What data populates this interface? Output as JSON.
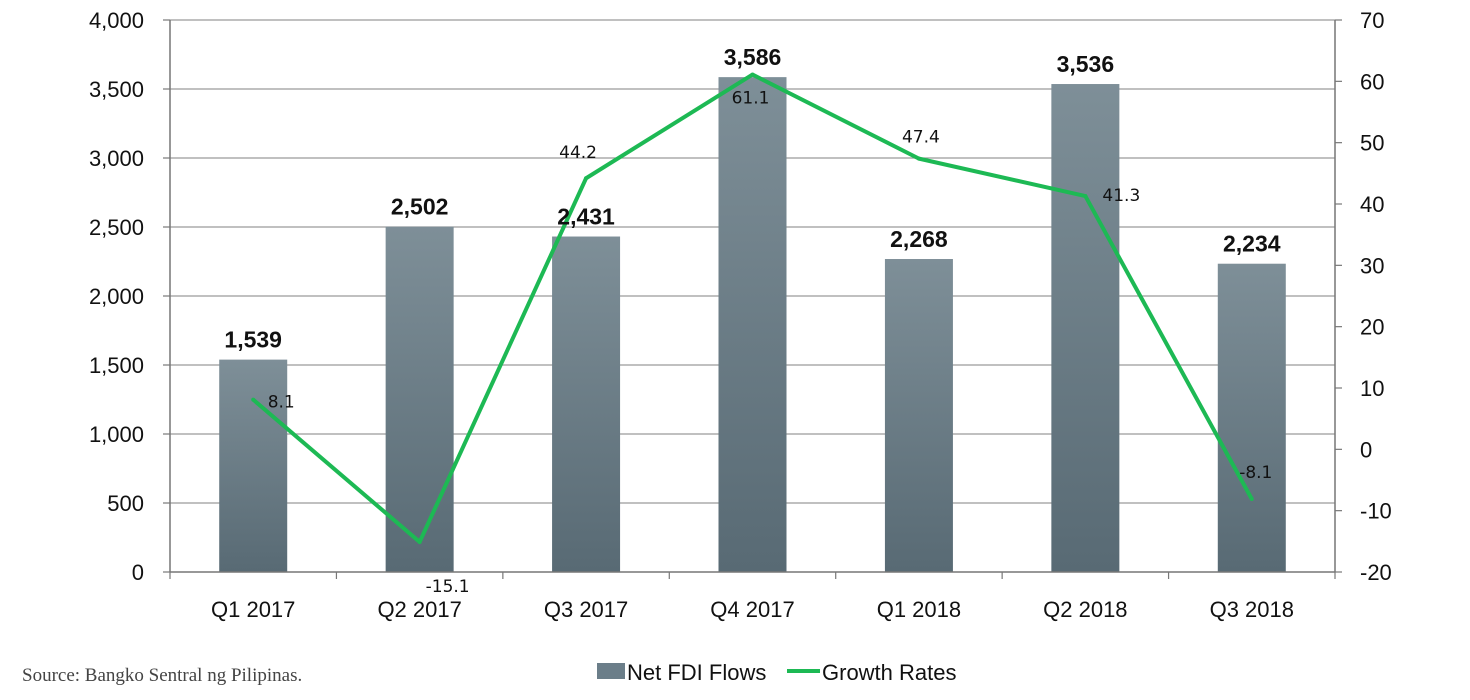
{
  "source_note": "Source: Bangko Sentral ng Pilipinas.",
  "colors": {
    "bar": "#6b7e89",
    "bar_light": "#7e8f98",
    "bar_dark": "#586a74",
    "line": "#1db954",
    "grid": "#9a9a9a"
  },
  "chart_data": {
    "type": "bar",
    "title": "",
    "categories": [
      "Q1 2017",
      "Q2 2017",
      "Q3 2017",
      "Q4 2017",
      "Q1 2018",
      "Q2 2018",
      "Q3 2018"
    ],
    "series": [
      {
        "name": "Net FDI Flows",
        "type": "bar",
        "axis": "left",
        "values": [
          1539,
          2502,
          2431,
          3586,
          2268,
          3536,
          2234
        ],
        "labels": [
          "1,539",
          "2,502",
          "2,431",
          "3,586",
          "2,268",
          "3,536",
          "2,234"
        ]
      },
      {
        "name": "Growth Rates",
        "type": "line",
        "axis": "right",
        "values": [
          8.1,
          -15.1,
          44.2,
          61.1,
          47.4,
          41.3,
          -8.1
        ],
        "labels": [
          "8.1",
          "-15.1",
          "44.2",
          "61.1",
          "47.4",
          "41.3",
          "-8.1"
        ]
      }
    ],
    "y_left": {
      "min": 0,
      "max": 4000,
      "step": 500,
      "tick_labels": [
        "0",
        "500",
        "1,000",
        "1,500",
        "2,000",
        "2,500",
        "3,000",
        "3,500",
        "4,000"
      ]
    },
    "y_right": {
      "min": -20,
      "max": 70,
      "step": 10,
      "tick_labels": [
        "-20",
        "-10",
        "0",
        "10",
        "20",
        "30",
        "40",
        "50",
        "60",
        "70"
      ]
    },
    "grid": true,
    "legend_position": "bottom"
  }
}
